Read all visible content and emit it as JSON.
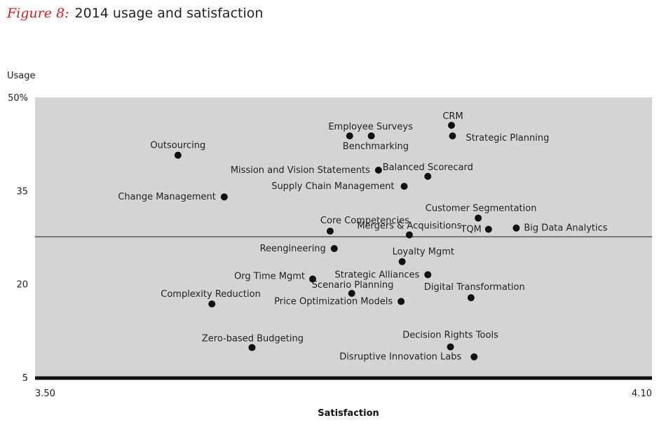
{
  "figure": {
    "label": "Figure 8:",
    "title": "2014 usage and satisfaction"
  },
  "chart_data": {
    "type": "scatter",
    "xlabel": "Satisfaction",
    "ylabel": "Usage",
    "xlim": [
      3.5,
      4.1
    ],
    "ylim": [
      5,
      50
    ],
    "x_ticks": [
      "3.50",
      "4.10"
    ],
    "y_ticks": [
      "50%",
      "35",
      "20",
      "5"
    ],
    "y_tick_values": [
      50,
      35,
      20,
      5
    ],
    "reference_line_y": 27.6,
    "background_color": "#d4d4d4",
    "point_color": "#111111",
    "points": [
      {
        "name": "CRM",
        "x": 3.905,
        "y": 45.5
      },
      {
        "name": "Strategic Planning",
        "x": 3.906,
        "y": 43.8
      },
      {
        "name": "Employee Surveys",
        "x": 3.827,
        "y": 43.8
      },
      {
        "name": "Benchmarking",
        "x": 3.806,
        "y": 43.8
      },
      {
        "name": "Outsourcing",
        "x": 3.639,
        "y": 40.7
      },
      {
        "name": "Mission and Vision Statements",
        "x": 3.834,
        "y": 38.3
      },
      {
        "name": "Balanced Scorecard",
        "x": 3.882,
        "y": 37.3
      },
      {
        "name": "Supply Chain Management",
        "x": 3.859,
        "y": 35.7
      },
      {
        "name": "Change Management",
        "x": 3.684,
        "y": 34.0
      },
      {
        "name": "Customer Segmentation",
        "x": 3.931,
        "y": 30.6
      },
      {
        "name": "Core Competencies",
        "x": 3.787,
        "y": 28.5
      },
      {
        "name": "Mergers & Acquisitions",
        "x": 3.864,
        "y": 27.9
      },
      {
        "name": "TQM",
        "x": 3.941,
        "y": 28.8
      },
      {
        "name": "Big Data Analytics",
        "x": 3.968,
        "y": 29.0
      },
      {
        "name": "Reengineering",
        "x": 3.791,
        "y": 25.7
      },
      {
        "name": "Loyalty Mgmt",
        "x": 3.857,
        "y": 23.6
      },
      {
        "name": "Strategic Alliances",
        "x": 3.882,
        "y": 21.5
      },
      {
        "name": "Org Time Mgmt",
        "x": 3.77,
        "y": 20.8
      },
      {
        "name": "Scenario Planning",
        "x": 3.808,
        "y": 18.5
      },
      {
        "name": "Price Optimization Models",
        "x": 3.856,
        "y": 17.2
      },
      {
        "name": "Digital Transformation",
        "x": 3.924,
        "y": 17.8
      },
      {
        "name": "Complexity Reduction",
        "x": 3.672,
        "y": 16.8
      },
      {
        "name": "Zero-based Budgeting",
        "x": 3.711,
        "y": 9.8
      },
      {
        "name": "Decision Rights Tools",
        "x": 3.904,
        "y": 9.9
      },
      {
        "name": "Disruptive Innovation Labs",
        "x": 3.927,
        "y": 8.3
      }
    ]
  }
}
